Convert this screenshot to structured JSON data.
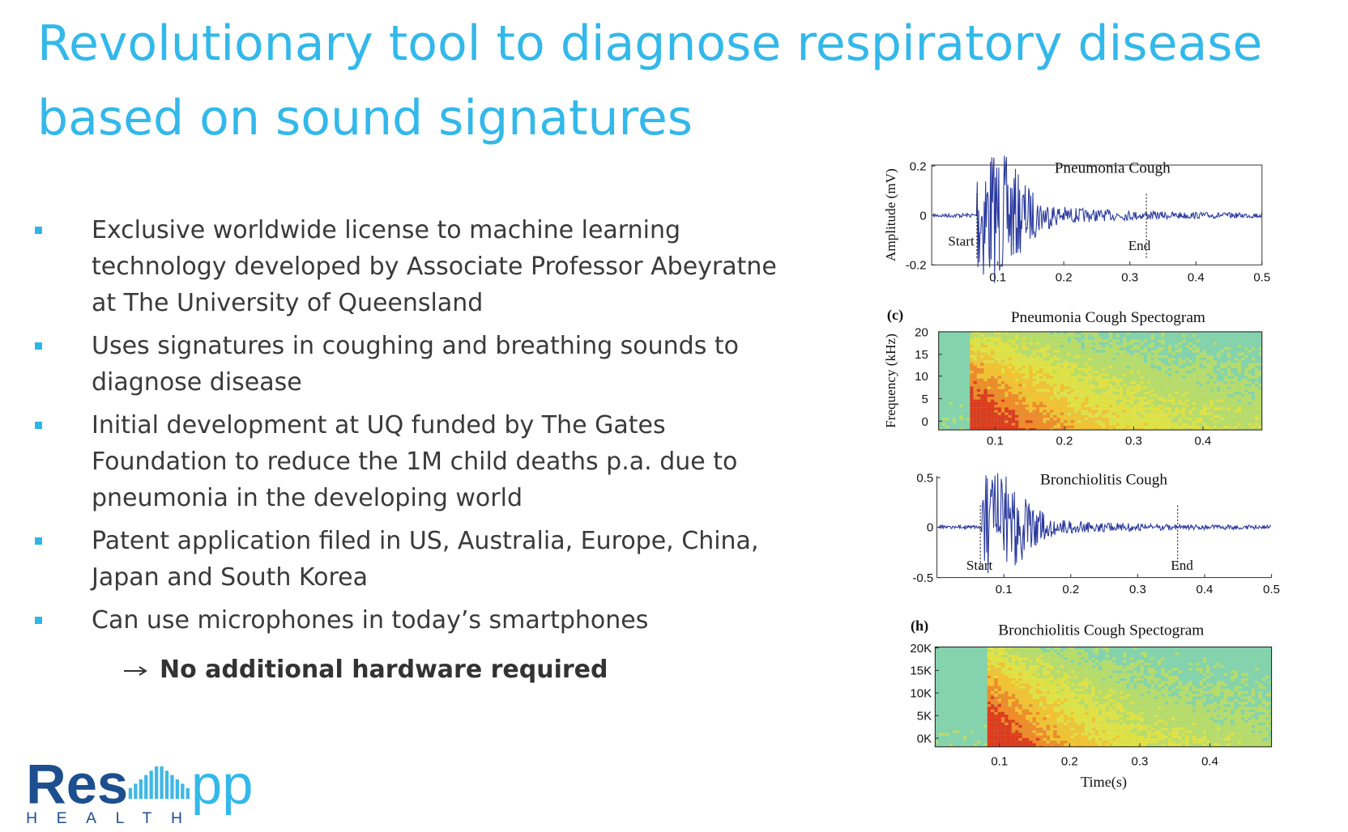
{
  "header": {
    "title_lines": [
      "Revolutionary tool to diagnose respiratory disease",
      "based on sound signatures"
    ]
  },
  "bullets": [
    "Exclusive worldwide license to machine learning technology developed by Associate Professor Abeyratne at The University of Queensland",
    "Uses signatures in coughing and breathing sounds to diagnose disease",
    "Initial development at UQ funded by The Gates Foundation to reduce the 1M child deaths p.a. due to pneumonia in the developing world",
    "Patent application filed in US, Australia, Europe, China, Japan and South Korea",
    "Can use microphones in today’s smartphones"
  ],
  "sub_bullet": "No additional hardware required",
  "figure": {
    "panels": [
      {
        "kind": "wave",
        "title": "Pneumonia Cough",
        "ylabel": "Amplitude (mV)",
        "yticks": [
          0.2,
          0,
          -0.2
        ],
        "xticks": [
          0.1,
          0.2,
          0.3,
          0.4,
          0.5
        ],
        "start": "Start",
        "end": "End"
      },
      {
        "kind": "spec",
        "tag": "(c)",
        "title": "Pneumonia Cough Spectogram",
        "ylabel": "Frequency (kHz)",
        "yticks": [
          20,
          15,
          10,
          5,
          0
        ],
        "xticks": [
          0.1,
          0.2,
          0.3,
          0.4
        ]
      },
      {
        "kind": "wave",
        "title": "Bronchiolitis Cough",
        "yticks": [
          0.5,
          0,
          -0.5
        ],
        "xticks": [
          0.1,
          0.2,
          0.3,
          0.4,
          0.5
        ],
        "start": "Start",
        "end": "End"
      },
      {
        "kind": "spec",
        "tag": "(h)",
        "title": "Bronchiolitis Cough Spectogram",
        "yticks": [
          "20K",
          "15K",
          "10K",
          "5K",
          "0K"
        ],
        "xticks": [
          0.1,
          0.2,
          0.3,
          0.4
        ],
        "xlabel": "Time(s)"
      }
    ]
  },
  "logo": {
    "left": "Res",
    "right": "pp",
    "tagline": "HEALTH"
  }
}
